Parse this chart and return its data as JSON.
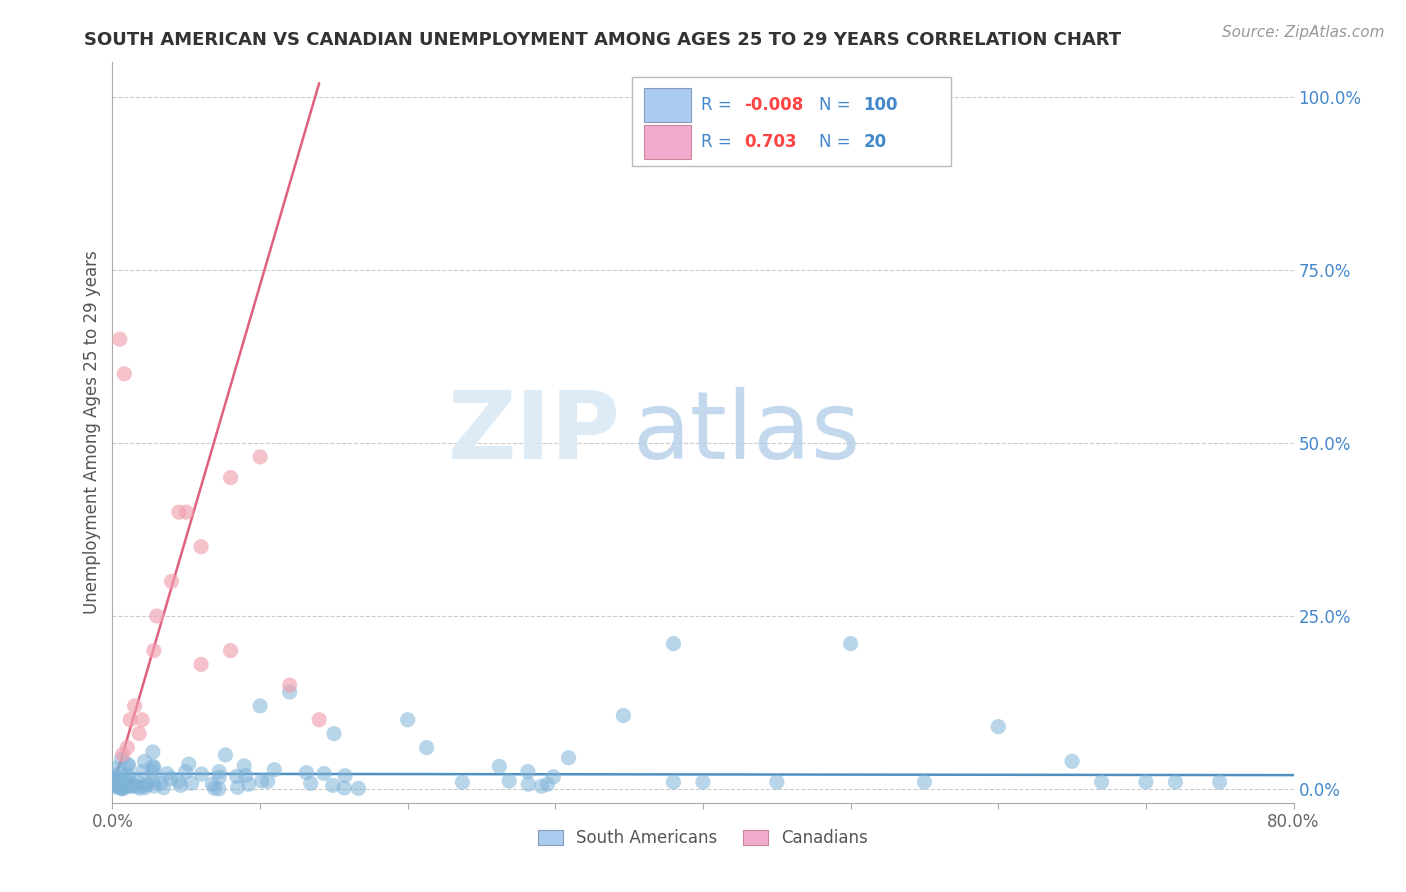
{
  "title": "SOUTH AMERICAN VS CANADIAN UNEMPLOYMENT AMONG AGES 25 TO 29 YEARS CORRELATION CHART",
  "source": "Source: ZipAtlas.com",
  "ylabel": "Unemployment Among Ages 25 to 29 years",
  "xlim": [
    0.0,
    0.8
  ],
  "ylim": [
    -0.02,
    1.05
  ],
  "xticks": [
    0.0,
    0.1,
    0.2,
    0.3,
    0.4,
    0.5,
    0.6,
    0.7,
    0.8
  ],
  "xticklabels": [
    "0.0%",
    "",
    "",
    "",
    "",
    "",
    "",
    "",
    "80.0%"
  ],
  "yticks_right": [
    0.0,
    0.25,
    0.5,
    0.75,
    1.0
  ],
  "yticklabels_right": [
    "0.0%",
    "25.0%",
    "50.0%",
    "75.0%",
    "100.0%"
  ],
  "blue_color": "#7EB3D8",
  "pink_color": "#F0A0B0",
  "blue_line_color": "#5090C0",
  "pink_line_color": "#E06080",
  "watermark_zip": "ZIP",
  "watermark_atlas": "atlas",
  "legend_R1": "-0.008",
  "legend_N1": "100",
  "legend_R2": "0.703",
  "legend_N2": "20"
}
